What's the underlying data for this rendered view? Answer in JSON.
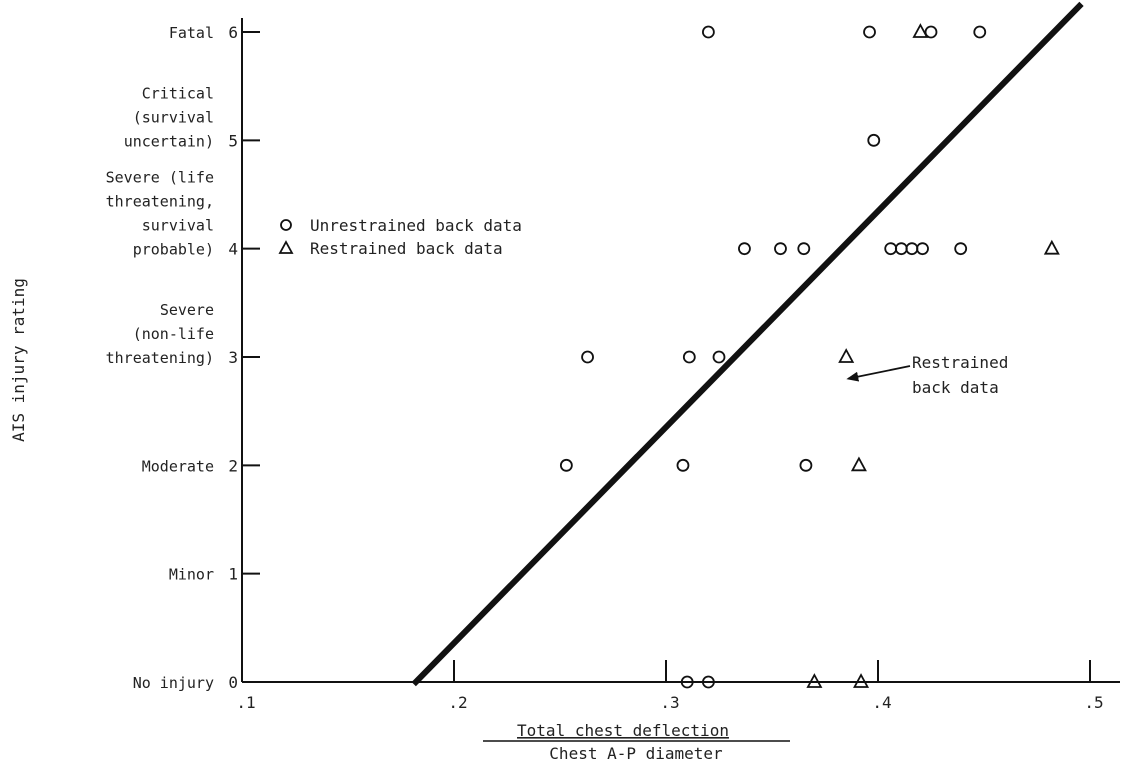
{
  "chart_data": {
    "type": "scatter",
    "title": "",
    "xlabel_numerator": "Total chest deflection",
    "xlabel_denominator": "Chest A-P diameter",
    "ylabel": "AIS injury rating",
    "xlim": [
      0.1,
      0.5
    ],
    "ylim": [
      0,
      6
    ],
    "x_ticks": [
      ".1",
      ".2",
      ".3",
      ".4",
      ".5"
    ],
    "y_ticks": [
      "0",
      "1",
      "2",
      "3",
      "4",
      "5",
      "6"
    ],
    "y_categories": [
      {
        "value": 0,
        "lines": [
          "No injury"
        ]
      },
      {
        "value": 1,
        "lines": [
          "Minor"
        ]
      },
      {
        "value": 2,
        "lines": [
          "Moderate"
        ]
      },
      {
        "value": 3,
        "lines": [
          "Severe",
          "(non-life",
          "threatening)"
        ]
      },
      {
        "value": 4,
        "lines": [
          "Severe (life",
          "threatening,",
          "survival",
          "probable)"
        ]
      },
      {
        "value": 5,
        "lines": [
          "Critical",
          "(survival",
          "uncertain)"
        ]
      },
      {
        "value": 6,
        "lines": [
          "Fatal"
        ]
      }
    ],
    "series": [
      {
        "name": "Unrestrained back data",
        "marker": "circle",
        "points": [
          {
            "x": 0.31,
            "y": 0
          },
          {
            "x": 0.32,
            "y": 0
          },
          {
            "x": 0.253,
            "y": 2
          },
          {
            "x": 0.308,
            "y": 2
          },
          {
            "x": 0.366,
            "y": 2
          },
          {
            "x": 0.263,
            "y": 3
          },
          {
            "x": 0.311,
            "y": 3
          },
          {
            "x": 0.325,
            "y": 3
          },
          {
            "x": 0.337,
            "y": 4
          },
          {
            "x": 0.354,
            "y": 4
          },
          {
            "x": 0.365,
            "y": 4
          },
          {
            "x": 0.406,
            "y": 4
          },
          {
            "x": 0.411,
            "y": 4
          },
          {
            "x": 0.416,
            "y": 4
          },
          {
            "x": 0.421,
            "y": 4
          },
          {
            "x": 0.439,
            "y": 4
          },
          {
            "x": 0.398,
            "y": 5
          },
          {
            "x": 0.32,
            "y": 6
          },
          {
            "x": 0.396,
            "y": 6
          },
          {
            "x": 0.425,
            "y": 6
          },
          {
            "x": 0.448,
            "y": 6
          }
        ]
      },
      {
        "name": "Restrained back data",
        "marker": "triangle",
        "points": [
          {
            "x": 0.37,
            "y": 0
          },
          {
            "x": 0.392,
            "y": 0
          },
          {
            "x": 0.391,
            "y": 2
          },
          {
            "x": 0.385,
            "y": 3
          },
          {
            "x": 0.482,
            "y": 4
          },
          {
            "x": 0.42,
            "y": 6
          }
        ]
      }
    ],
    "fit_line": {
      "x1": 0.182,
      "y1": 0,
      "x2": 0.495,
      "y2": 6.24
    },
    "annotation": {
      "lines": [
        "Restrained",
        "back data"
      ],
      "arrow_target": {
        "x": 0.386,
        "y": 2.8
      }
    },
    "legend": {
      "placement": "upper-left"
    }
  }
}
